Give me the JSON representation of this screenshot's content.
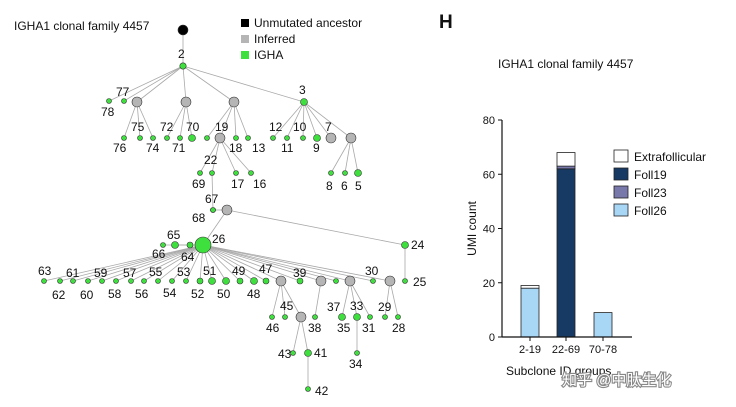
{
  "panel_letter": "H",
  "tree": {
    "title": "IGHA1 clonal family 4457",
    "legend": [
      {
        "label": "Unmutated ancestor",
        "color": "#000000"
      },
      {
        "label": "Inferred",
        "color": "#b5b5b5"
      },
      {
        "label": "IGHA",
        "color": "#3ee03e"
      }
    ],
    "node_labels": [
      "2",
      "3",
      "5",
      "6",
      "7",
      "8",
      "9",
      "10",
      "11",
      "12",
      "13",
      "16",
      "17",
      "18",
      "19",
      "22",
      "24",
      "25",
      "26",
      "28",
      "29",
      "30",
      "31",
      "33",
      "34",
      "35",
      "37",
      "38",
      "39",
      "41",
      "42",
      "43",
      "45",
      "46",
      "47",
      "48",
      "49",
      "50",
      "51",
      "52",
      "53",
      "54",
      "55",
      "56",
      "57",
      "58",
      "59",
      "60",
      "61",
      "62",
      "63",
      "64",
      "65",
      "66",
      "67",
      "68",
      "69",
      "70",
      "71",
      "72",
      "74",
      "75",
      "76",
      "77",
      "78"
    ]
  },
  "chart_data": {
    "type": "bar",
    "stacked": true,
    "title": "IGHA1 clonal family 4457",
    "xlabel": "Subclone ID groups",
    "ylabel": "UMI count",
    "categories": [
      "2-19",
      "22-69",
      "70-78"
    ],
    "ylim": [
      0,
      80
    ],
    "yticks": [
      0,
      20,
      40,
      60,
      80
    ],
    "series": [
      {
        "name": "Foll26",
        "color": "#a8d6f5",
        "values": [
          18,
          0,
          9
        ]
      },
      {
        "name": "Foll19",
        "color": "#173a64",
        "values": [
          0,
          62,
          0
        ]
      },
      {
        "name": "Foll23",
        "color": "#7878aa",
        "values": [
          0,
          1,
          0
        ]
      },
      {
        "name": "Extrafollicular",
        "color": "#ffffff",
        "values": [
          1,
          5,
          0
        ]
      }
    ],
    "legend_order": [
      "Extrafollicular",
      "Foll19",
      "Foll23",
      "Foll26"
    ]
  },
  "watermark": "知乎 @中肽生化"
}
